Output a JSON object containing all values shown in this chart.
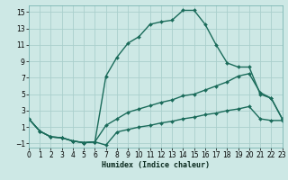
{
  "xlabel": "Humidex (Indice chaleur)",
  "background_color": "#cde8e5",
  "grid_color": "#aacfcc",
  "line_color": "#1a6b5a",
  "xlim": [
    0,
    23
  ],
  "ylim": [
    -1.5,
    15.8
  ],
  "xticks": [
    0,
    1,
    2,
    3,
    4,
    5,
    6,
    7,
    8,
    9,
    10,
    11,
    12,
    13,
    14,
    15,
    16,
    17,
    18,
    19,
    20,
    21,
    22,
    23
  ],
  "yticks": [
    -1,
    1,
    3,
    5,
    7,
    9,
    11,
    13,
    15
  ],
  "line1_x": [
    0,
    1,
    2,
    3,
    4,
    5,
    6,
    7,
    8,
    9,
    10,
    11,
    12,
    13,
    14,
    15,
    16,
    17,
    18,
    19,
    20,
    21,
    22,
    23
  ],
  "line1_y": [
    2.0,
    0.5,
    -0.2,
    -0.3,
    -0.7,
    -0.9,
    -0.8,
    -1.2,
    0.4,
    0.7,
    1.0,
    1.2,
    1.5,
    1.7,
    2.0,
    2.2,
    2.5,
    2.7,
    3.0,
    3.2,
    3.5,
    2.0,
    1.8,
    1.8
  ],
  "line2_x": [
    0,
    1,
    2,
    3,
    4,
    5,
    6,
    7,
    8,
    9,
    10,
    11,
    12,
    13,
    14,
    15,
    16,
    17,
    18,
    19,
    20,
    21,
    22,
    23
  ],
  "line2_y": [
    2.0,
    0.5,
    -0.2,
    -0.3,
    -0.7,
    -0.9,
    -0.8,
    1.2,
    2.0,
    2.8,
    3.2,
    3.6,
    4.0,
    4.3,
    4.8,
    5.0,
    5.5,
    6.0,
    6.5,
    7.2,
    7.5,
    5.2,
    4.5,
    2.0
  ],
  "line3_x": [
    0,
    1,
    2,
    3,
    4,
    5,
    6,
    7,
    8,
    9,
    10,
    11,
    12,
    13,
    14,
    15,
    16,
    17,
    18,
    19,
    20,
    21,
    22,
    23
  ],
  "line3_y": [
    2.0,
    0.5,
    -0.2,
    -0.3,
    -0.7,
    -0.9,
    -0.8,
    7.2,
    9.5,
    11.2,
    12.0,
    13.5,
    13.8,
    14.0,
    15.2,
    15.2,
    13.5,
    11.0,
    8.8,
    8.3,
    8.3,
    5.0,
    4.5,
    2.0
  ],
  "ticklabelsize": 5.5,
  "linewidth": 1.0
}
